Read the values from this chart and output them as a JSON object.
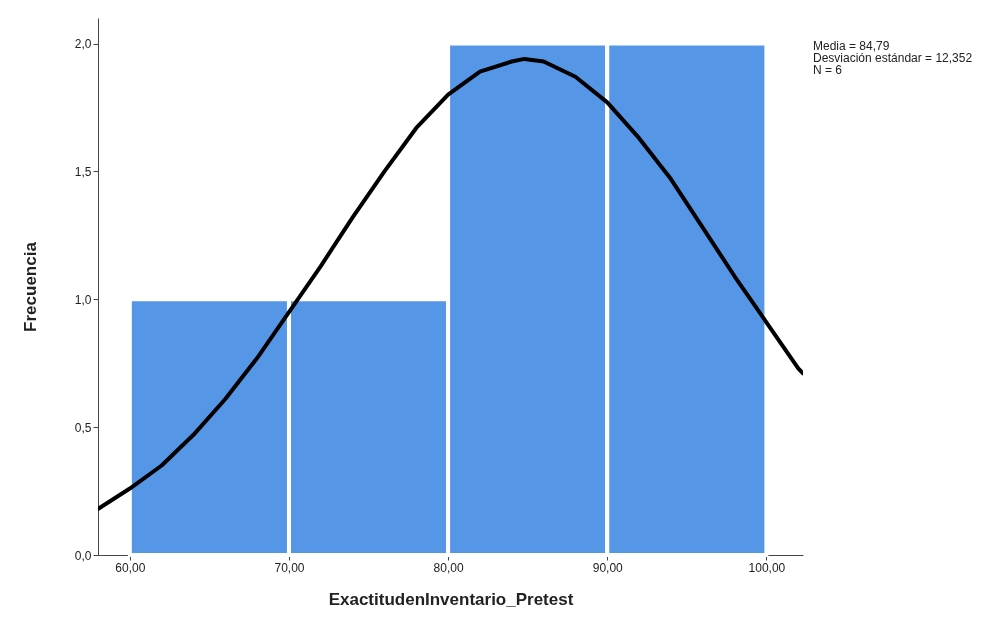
{
  "chart_data": {
    "type": "histogram",
    "xlabel": "ExactitudenInventario_Pretest",
    "ylabel": "Frecuencia",
    "bins": [
      60,
      70,
      80,
      90,
      100
    ],
    "values": [
      1,
      1,
      2,
      2
    ],
    "color": "#5596e6",
    "series": [
      {
        "type": "line",
        "color": "#000000",
        "x": [
          58,
          60,
          62,
          64,
          66,
          68,
          70,
          72,
          74,
          76,
          78,
          80,
          82,
          84,
          84.79,
          86,
          88,
          90,
          92,
          94,
          96,
          98,
          100,
          102,
          102.3
        ],
        "values": [
          0.18,
          0.26,
          0.35,
          0.47,
          0.61,
          0.77,
          0.95,
          1.13,
          1.32,
          1.5,
          1.67,
          1.8,
          1.89,
          1.93,
          1.94,
          1.93,
          1.87,
          1.77,
          1.63,
          1.47,
          1.28,
          1.09,
          0.91,
          0.73,
          0.71
        ]
      }
    ],
    "xlim": [
      58,
      102.3
    ],
    "ylim": [
      0,
      2.1
    ],
    "xticks": [
      {
        "value": 60,
        "label": "60,00"
      },
      {
        "value": 70,
        "label": "70,00"
      },
      {
        "value": 80,
        "label": "80,00"
      },
      {
        "value": 90,
        "label": "90,00"
      },
      {
        "value": 100,
        "label": "100,00"
      }
    ],
    "yticks": [
      {
        "value": 0,
        "label": "0,0"
      },
      {
        "value": 0.5,
        "label": "0,5"
      },
      {
        "value": 1,
        "label": "1,0"
      },
      {
        "value": 1.5,
        "label": "1,5"
      },
      {
        "value": 2,
        "label": "2,0"
      }
    ],
    "grid": false,
    "annotations": [
      "Media = 84,79",
      "Desviación estándar = 12,352",
      "N = 6"
    ]
  }
}
